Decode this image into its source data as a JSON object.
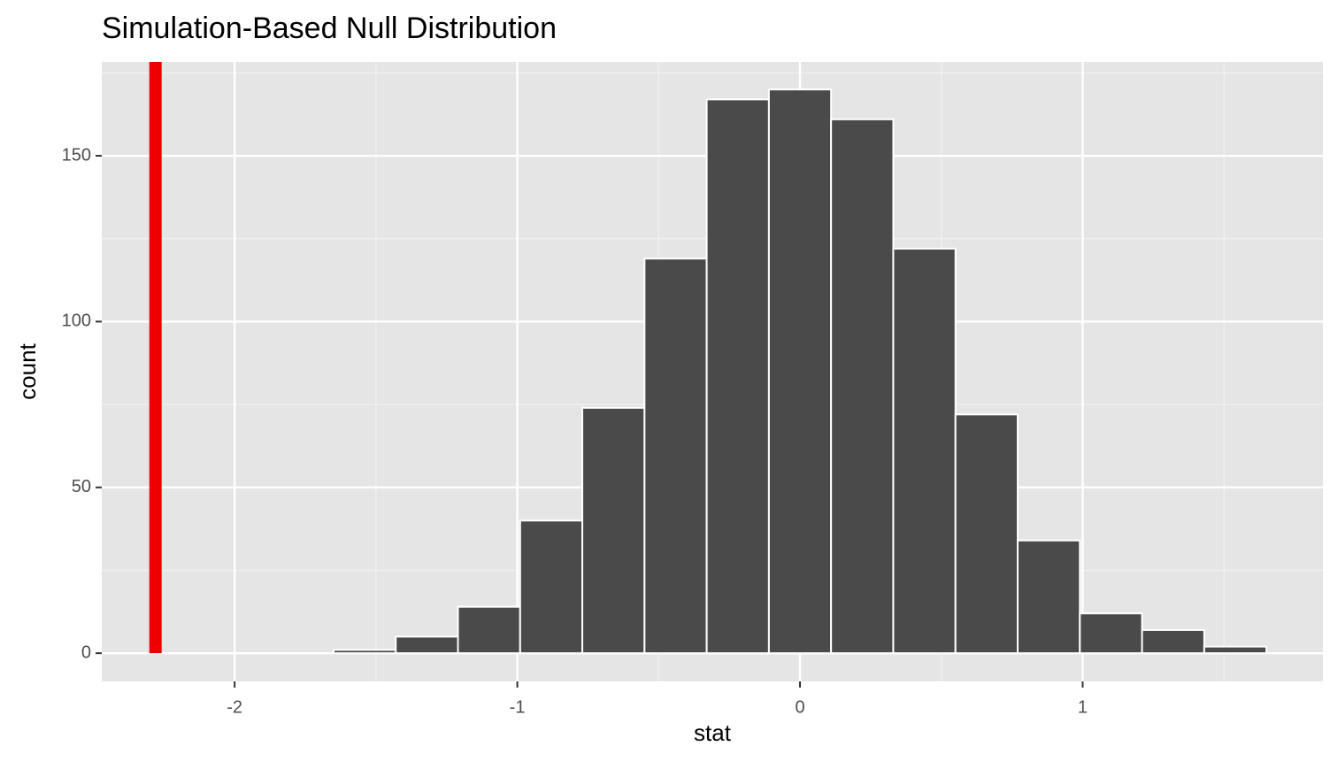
{
  "chart_data": {
    "type": "histogram",
    "title": "Simulation-Based Null Distribution",
    "x_label": "stat",
    "y_label": "count",
    "bins": [
      -1.65,
      -1.43,
      -1.21,
      -0.99,
      -0.77,
      -0.55,
      -0.33,
      -0.11,
      0.11,
      0.33,
      0.55,
      0.77,
      0.99,
      1.21,
      1.43,
      1.65
    ],
    "values": [
      1,
      5,
      14,
      40,
      74,
      119,
      167,
      170,
      161,
      122,
      72,
      34,
      12,
      7,
      2
    ],
    "color": "#4a4a4a",
    "observed_stat": -2.28,
    "observed_color": "#ee0000",
    "xlim": [
      -2.47,
      1.85
    ],
    "ylim": [
      -8.5,
      178.3
    ],
    "xticks": [
      -2,
      -1,
      0,
      1
    ],
    "yticks": [
      0,
      50,
      100,
      150
    ],
    "x_minor_ticks": [
      -1.5,
      -0.5,
      0.5,
      1.5
    ],
    "y_minor_ticks": [
      25,
      75,
      125,
      175
    ],
    "grid": true
  }
}
